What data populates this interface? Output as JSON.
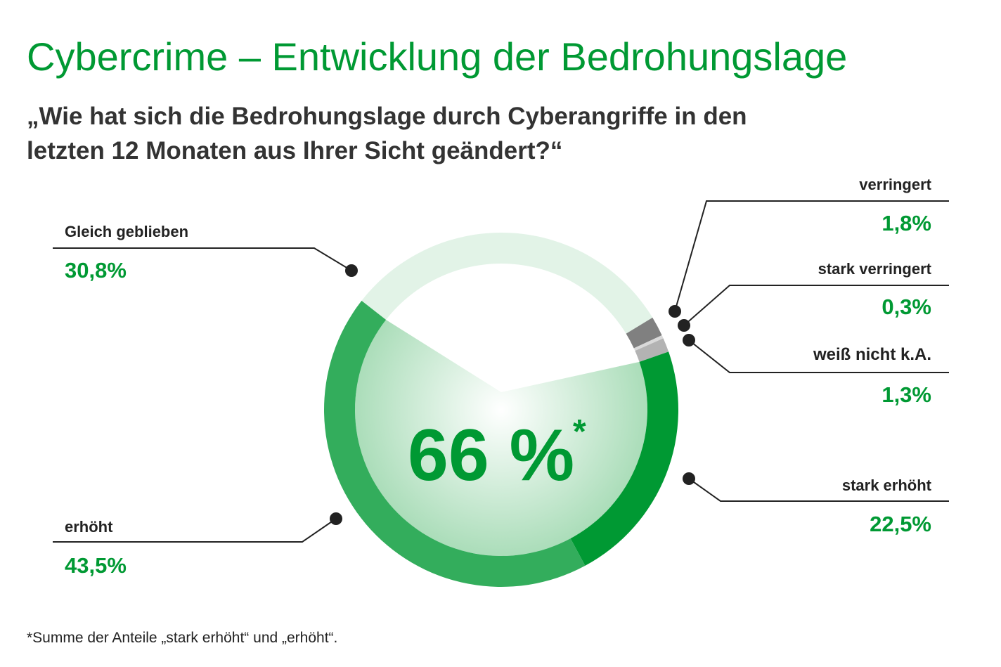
{
  "chart_data": {
    "type": "pie",
    "donut": true,
    "title": "Cybercrime – Entwicklung der Bedrohungslage",
    "subtitle_line1": "„Wie hat sich die Bedrohungslage durch Cyberangriffe in den",
    "subtitle_line2": "letzten 12 Monaten aus Ihrer Sicht geändert?“",
    "center_value": "66 %",
    "center_mark": "*",
    "footnote": "*Summe der Anteile „stark erhöht“ und „erhöht“.",
    "slices": [
      {
        "label": "Gleich geblieben",
        "value": 30.8,
        "text": "30,8%",
        "color": "#e2f3e7"
      },
      {
        "label": "verringert",
        "value": 1.8,
        "text": "1,8%",
        "color": "#808080"
      },
      {
        "label": "stark verringert",
        "value": 0.3,
        "text": "0,3%",
        "color": "#d9d9d9"
      },
      {
        "label": "weiß nicht k.A.",
        "value": 1.3,
        "text": "1,3%",
        "color": "#b3b3b3"
      },
      {
        "label": "stark erhöht",
        "value": 22.5,
        "text": "22,5%",
        "color": "#009933"
      },
      {
        "label": "erhöht",
        "value": 43.5,
        "text": "43,5%",
        "color": "#33ad5c"
      }
    ],
    "start_angle_deg": 308,
    "highlight_fill_colors": [
      "#ffffff",
      "#a8dcb7"
    ]
  }
}
